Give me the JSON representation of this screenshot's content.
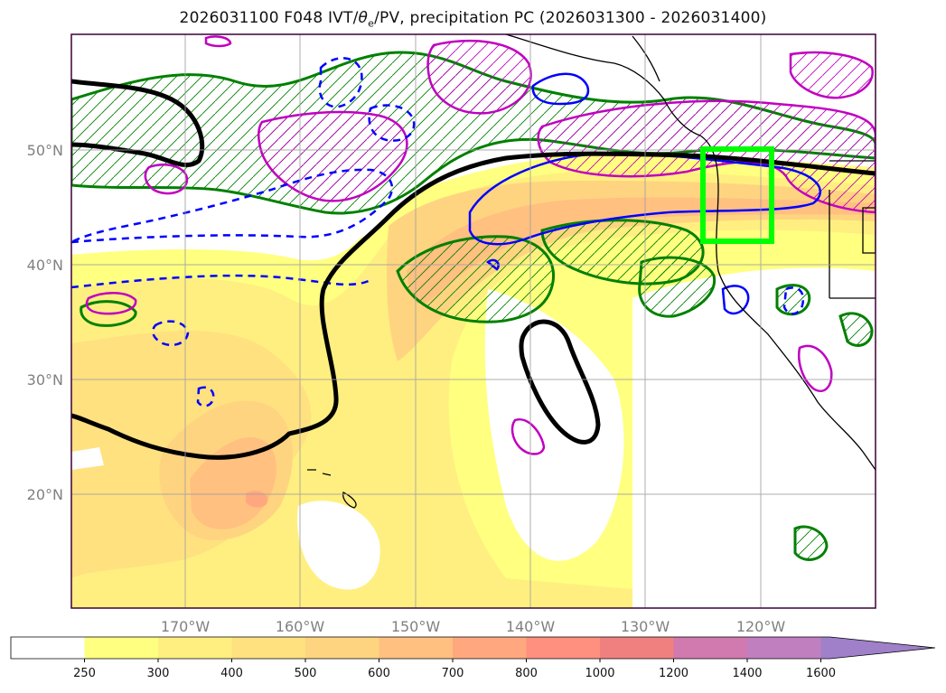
{
  "title": {
    "prefix": "2026031100 F048 IVT/",
    "theta": "θ",
    "sub": "e",
    "suffix": "/PV, precipitation PC (2026031300 - 2026031400)"
  },
  "map": {
    "lat_labels": [
      "50°N",
      "40°N",
      "30°N",
      "20°N"
    ],
    "lon_labels": [
      "170°W",
      "160°W",
      "150°W",
      "140°W",
      "130°W",
      "120°W"
    ],
    "box_color": "#00ff00",
    "theta_e_color": "#000000",
    "pv_color": "#008000",
    "precip_solid_color": "#0000ff",
    "magenta_color": "#c000c0"
  },
  "colorbar": {
    "ticks": [
      "250",
      "300",
      "400",
      "500",
      "600",
      "700",
      "800",
      "1000",
      "1200",
      "1400",
      "1600"
    ],
    "colors": [
      "#ffffff",
      "#ffff80",
      "#ffee80",
      "#ffe180",
      "#ffd480",
      "#ffc080",
      "#ffa880",
      "#ff9080",
      "#f08080",
      "#d07ab0",
      "#c080c0",
      "#a080c8"
    ],
    "extend": "max"
  }
}
